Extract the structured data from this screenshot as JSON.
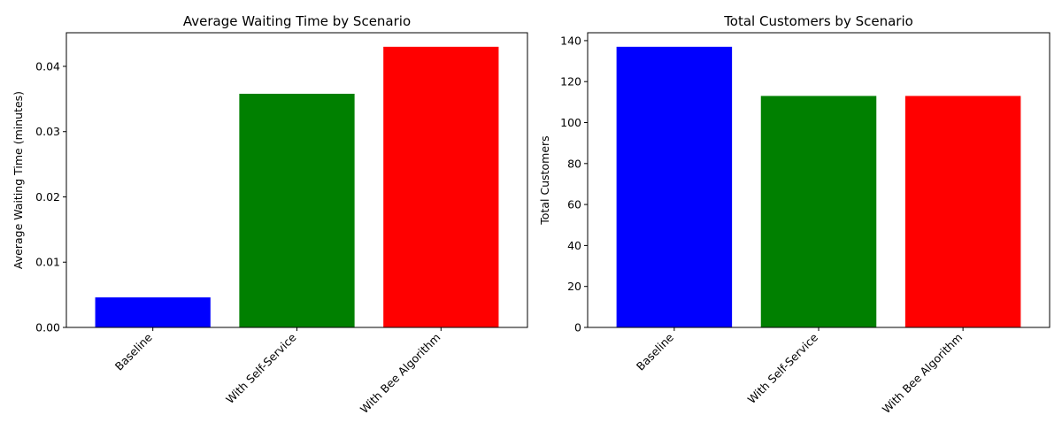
{
  "chart_data": [
    {
      "type": "bar",
      "title": "Average Waiting Time by Scenario",
      "xlabel": "",
      "ylabel": "Average Waiting Time (minutes)",
      "categories": [
        "Baseline",
        "With Self-Service",
        "With Bee Algorithm"
      ],
      "values": [
        0.0046,
        0.0358,
        0.043
      ],
      "colors": [
        "#0000ff",
        "#008000",
        "#ff0000"
      ],
      "ylim": [
        0,
        0.04515
      ],
      "yticks": [
        0,
        0.01,
        0.02,
        0.03,
        0.04
      ],
      "ytick_labels": [
        "0.00",
        "0.01",
        "0.02",
        "0.03",
        "0.04"
      ],
      "grid": false,
      "legend": "none"
    },
    {
      "type": "bar",
      "title": "Total Customers by Scenario",
      "xlabel": "",
      "ylabel": "Total Customers",
      "categories": [
        "Baseline",
        "With Self-Service",
        "With Bee Algorithm"
      ],
      "values": [
        137,
        113,
        113
      ],
      "colors": [
        "#0000ff",
        "#008000",
        "#ff0000"
      ],
      "ylim": [
        0,
        143.85
      ],
      "yticks": [
        0,
        20,
        40,
        60,
        80,
        100,
        120,
        140
      ],
      "ytick_labels": [
        "0",
        "20",
        "40",
        "60",
        "80",
        "100",
        "120",
        "140"
      ],
      "grid": false,
      "legend": "none"
    }
  ]
}
